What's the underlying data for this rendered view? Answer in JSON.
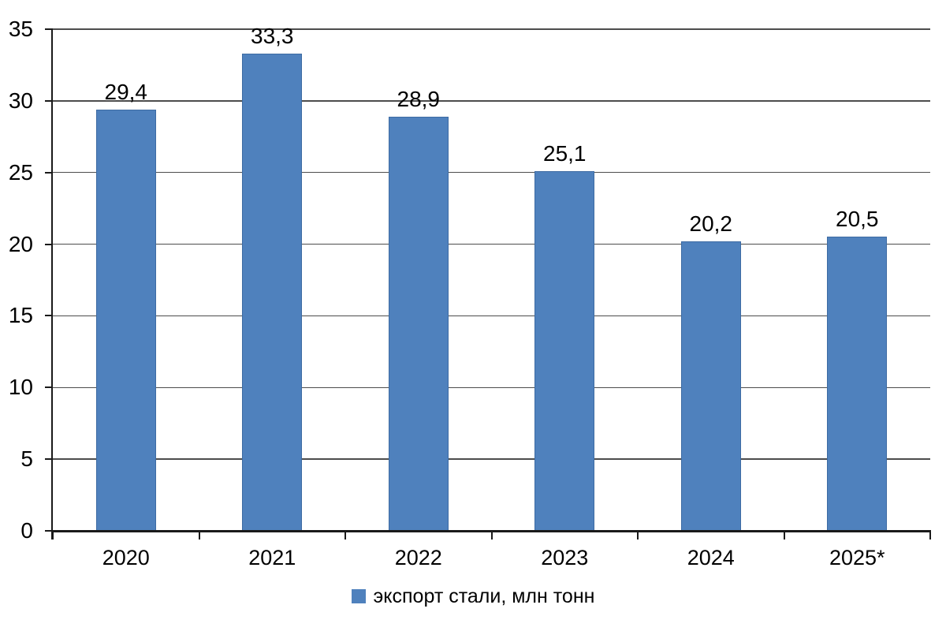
{
  "chart_data": {
    "type": "bar",
    "categories": [
      "2020",
      "2021",
      "2022",
      "2023",
      "2024",
      "2025*"
    ],
    "values": [
      29.4,
      33.3,
      28.9,
      25.1,
      20.2,
      20.5
    ],
    "value_labels": [
      "29,4",
      "33,3",
      "28,9",
      "25,1",
      "20,2",
      "20,5"
    ],
    "legend": "экспорт стали, млн тонн",
    "legend_position": "bottom",
    "ylim": [
      0,
      35
    ],
    "ytick_step": 5,
    "yticks": [
      "0",
      "5",
      "10",
      "15",
      "20",
      "25",
      "30",
      "35"
    ],
    "grid": true,
    "bar_color": "#4f81bd",
    "bar_border_color": "#3d6ba3",
    "gridline_color": "#4d4d4d",
    "axis_color": "#1a1a1a",
    "title": "",
    "xlabel": "",
    "ylabel": ""
  }
}
